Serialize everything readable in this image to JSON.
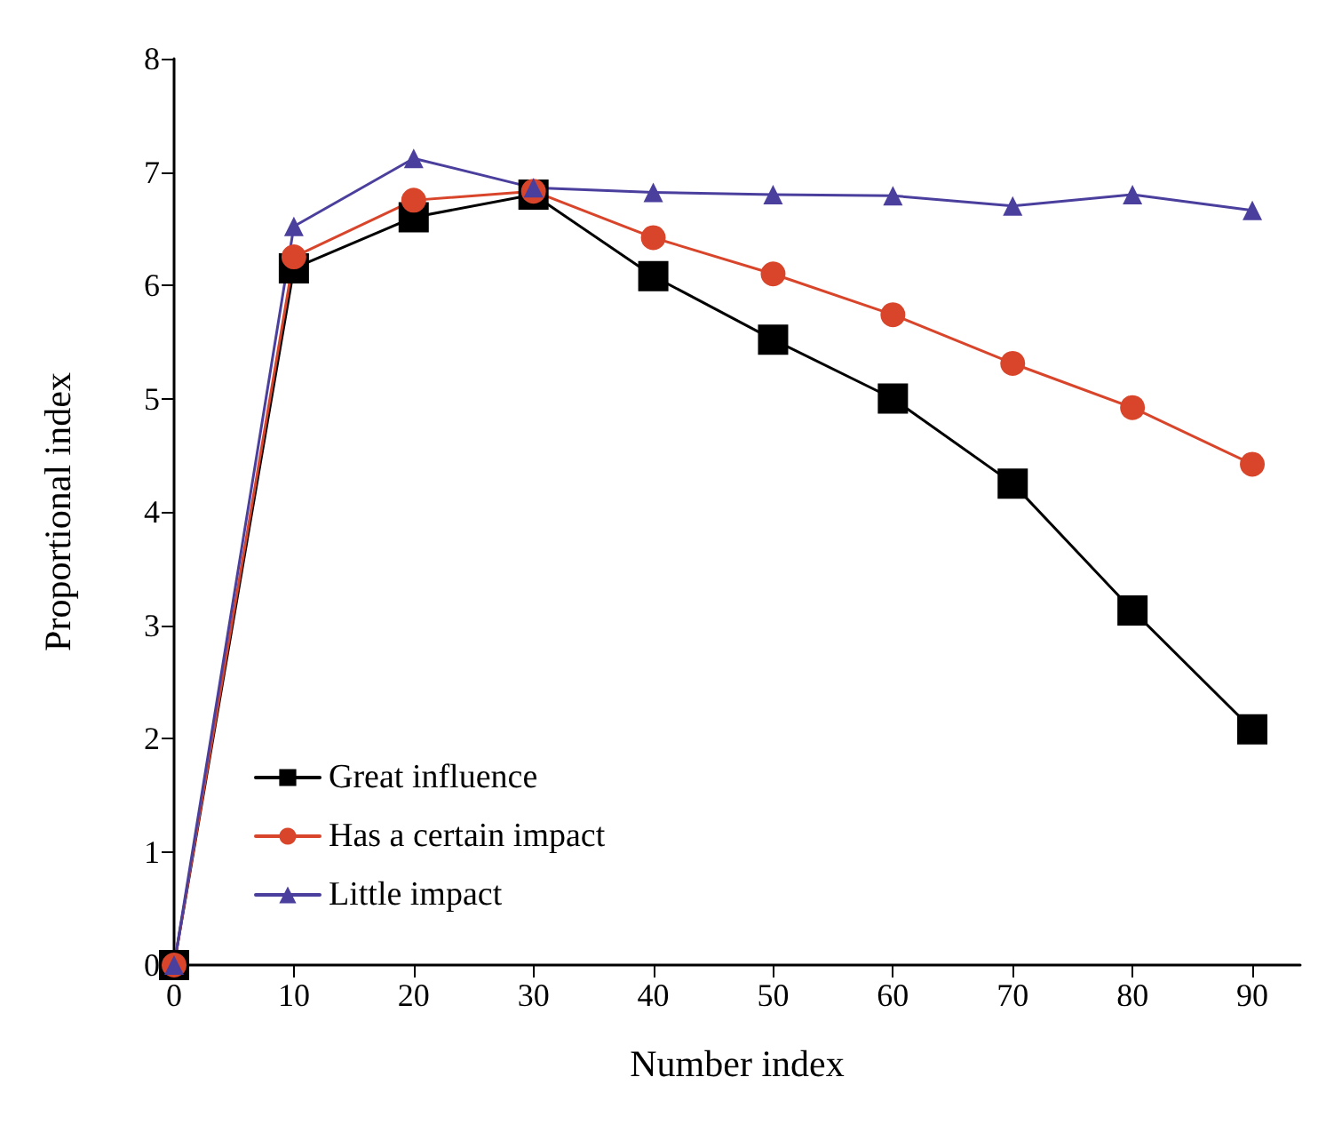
{
  "chart_data": {
    "type": "line",
    "xlabel": "Number index",
    "ylabel": "Proportional index",
    "x": [
      0,
      10,
      20,
      30,
      40,
      50,
      60,
      70,
      80,
      90
    ],
    "series": [
      {
        "name": "Great influence",
        "color": "#000000",
        "marker": "square",
        "values": [
          0,
          6.15,
          6.6,
          6.8,
          6.08,
          5.52,
          5.0,
          4.25,
          3.13,
          2.08
        ]
      },
      {
        "name": "Has a certain impact",
        "color": "#d9452b",
        "marker": "circle",
        "values": [
          0,
          6.25,
          6.75,
          6.83,
          6.42,
          6.1,
          5.74,
          5.31,
          4.92,
          4.42
        ]
      },
      {
        "name": "Little impact",
        "color": "#4b3f9e",
        "marker": "triangle",
        "values": [
          0,
          6.52,
          7.12,
          6.86,
          6.82,
          6.8,
          6.79,
          6.7,
          6.8,
          6.66
        ]
      }
    ],
    "xlim": [
      0,
      94
    ],
    "xticks": [
      0,
      10,
      20,
      30,
      40,
      50,
      60,
      70,
      80,
      90
    ],
    "ylim": [
      0,
      8
    ],
    "yticks": [
      0,
      1,
      2,
      3,
      4,
      5,
      6,
      7,
      8
    ],
    "grid": false,
    "legend": "bottom left",
    "line_style": "solid"
  }
}
